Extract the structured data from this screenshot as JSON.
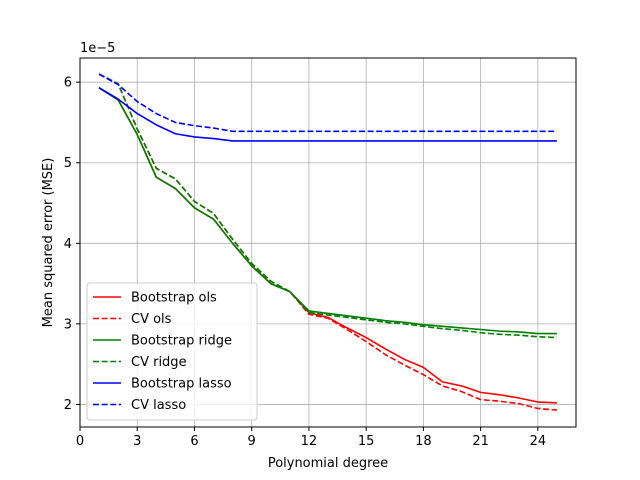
{
  "chart_data": {
    "type": "line",
    "xlabel": "Polynomial degree",
    "ylabel": "Mean squared error (MSE)",
    "offset_label": "1e−5",
    "xlim": [
      0,
      26
    ],
    "ylim": [
      1.72,
      6.3
    ],
    "xticks": [
      0,
      3,
      6,
      9,
      12,
      15,
      18,
      21,
      24
    ],
    "yticks": [
      2,
      3,
      4,
      5,
      6
    ],
    "grid": true,
    "legend_position": "lower-left",
    "x": [
      1,
      2,
      3,
      4,
      5,
      6,
      7,
      8,
      9,
      10,
      11,
      12,
      13,
      14,
      15,
      16,
      17,
      18,
      19,
      20,
      21,
      22,
      23,
      24,
      25
    ],
    "series": [
      {
        "name": "Bootstrap ols",
        "color": "#ff0000",
        "dash": "solid",
        "values": [
          5.93,
          5.78,
          5.35,
          4.82,
          4.68,
          4.44,
          4.3,
          4.0,
          3.72,
          3.5,
          3.4,
          3.14,
          3.08,
          2.95,
          2.83,
          2.69,
          2.56,
          2.46,
          2.28,
          2.23,
          2.15,
          2.12,
          2.08,
          2.03,
          2.02
        ]
      },
      {
        "name": "CV ols",
        "color": "#ff0000",
        "dash": "dashed",
        "values": [
          6.1,
          5.98,
          5.42,
          4.93,
          4.8,
          4.52,
          4.37,
          4.05,
          3.75,
          3.53,
          3.4,
          3.12,
          3.07,
          2.93,
          2.78,
          2.62,
          2.49,
          2.37,
          2.23,
          2.16,
          2.06,
          2.04,
          2.01,
          1.95,
          1.93
        ]
      },
      {
        "name": "Bootstrap ridge",
        "color": "#008000",
        "dash": "solid",
        "values": [
          5.93,
          5.78,
          5.35,
          4.82,
          4.68,
          4.44,
          4.3,
          4.0,
          3.72,
          3.5,
          3.4,
          3.16,
          3.13,
          3.1,
          3.07,
          3.04,
          3.02,
          2.99,
          2.97,
          2.95,
          2.93,
          2.91,
          2.9,
          2.88,
          2.88
        ]
      },
      {
        "name": "CV ridge",
        "color": "#008000",
        "dash": "dashed",
        "values": [
          6.1,
          5.98,
          5.42,
          4.93,
          4.8,
          4.52,
          4.37,
          4.05,
          3.75,
          3.53,
          3.4,
          3.14,
          3.11,
          3.08,
          3.05,
          3.02,
          3.0,
          2.97,
          2.94,
          2.92,
          2.89,
          2.87,
          2.86,
          2.84,
          2.83
        ]
      },
      {
        "name": "Bootstrap lasso",
        "color": "#0000ff",
        "dash": "solid",
        "values": [
          5.93,
          5.79,
          5.61,
          5.47,
          5.36,
          5.32,
          5.3,
          5.27,
          5.27,
          5.27,
          5.27,
          5.27,
          5.27,
          5.27,
          5.27,
          5.27,
          5.27,
          5.27,
          5.27,
          5.27,
          5.27,
          5.27,
          5.27,
          5.27,
          5.27
        ]
      },
      {
        "name": "CV lasso",
        "color": "#0000ff",
        "dash": "dashed",
        "values": [
          6.1,
          5.97,
          5.76,
          5.61,
          5.5,
          5.46,
          5.43,
          5.39,
          5.39,
          5.39,
          5.39,
          5.39,
          5.39,
          5.39,
          5.39,
          5.39,
          5.39,
          5.39,
          5.39,
          5.39,
          5.39,
          5.39,
          5.39,
          5.39,
          5.39
        ]
      }
    ]
  }
}
